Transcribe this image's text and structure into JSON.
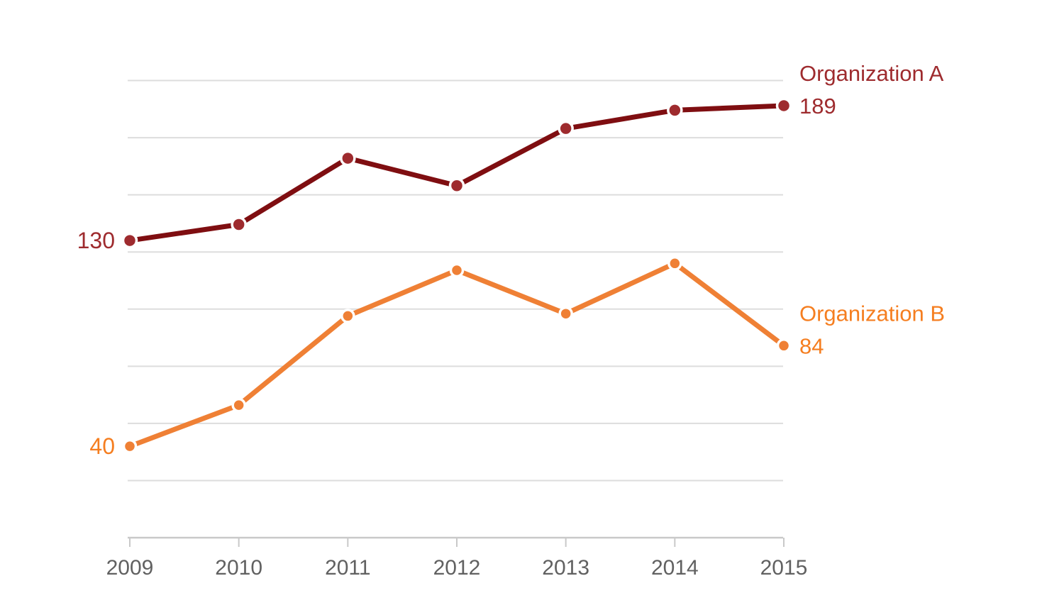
{
  "chart_data": {
    "type": "line",
    "x": [
      "2009",
      "2010",
      "2011",
      "2012",
      "2013",
      "2014",
      "2015"
    ],
    "series": [
      {
        "name": "Organization A",
        "values": [
          130,
          137,
          166,
          154,
          179,
          187,
          189
        ],
        "start_label": "130",
        "end_label": "189",
        "line_color": "#7F0E11",
        "marker_color": "#9E2B2E",
        "label_color": "#9E2B2E"
      },
      {
        "name": "Organization B",
        "values": [
          40,
          58,
          97,
          117,
          98,
          120,
          84
        ],
        "start_label": "40",
        "end_label": "84",
        "line_color": "#EF8035",
        "marker_color": "#EF8035",
        "label_color": "#F57E20"
      }
    ],
    "title": "",
    "xlabel": "",
    "ylabel": "",
    "ylim": [
      0,
      200
    ],
    "grid_step": 25,
    "grid": true,
    "legend_position": "right-of-last-point",
    "grid_color": "#DDDDDD",
    "axis_color": "#C9C9C9",
    "tick_label_color": "#616161",
    "background_color": "#FFFFFF"
  }
}
